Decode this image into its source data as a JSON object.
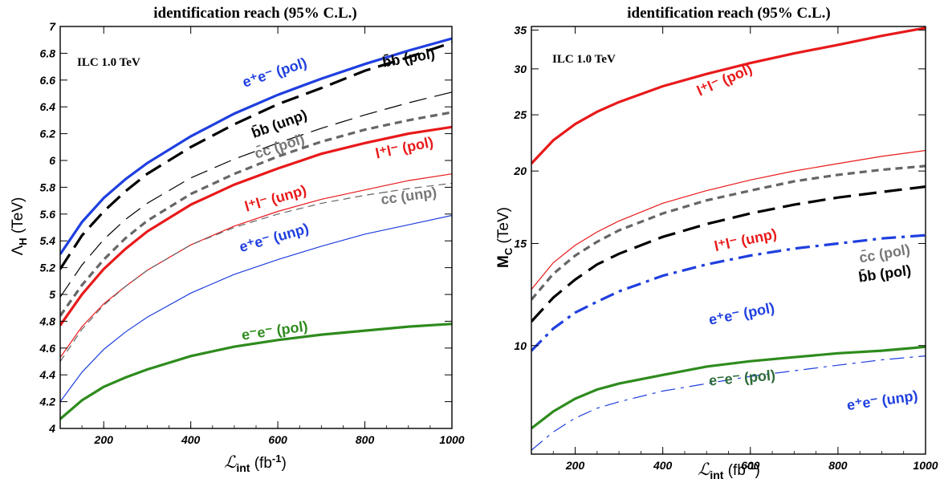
{
  "chart_data": [
    {
      "type": "line",
      "title": "identification reach (95% C.L.)",
      "annotation": "ILC 1.0 TeV",
      "xlabel_main": "ℒ",
      "xlabel_sub": "int",
      "xlabel_unit": " (fb",
      "xlabel_sup": "-1",
      "xlabel_close": ")",
      "ylabel_main": "Λ",
      "ylabel_sub": "H",
      "ylabel_unit": " (TeV)",
      "xlim": [
        100,
        1000
      ],
      "ylim": [
        4,
        7
      ],
      "xticks": [
        200,
        400,
        600,
        800,
        1000
      ],
      "yticks": [
        4,
        4.2,
        4.4,
        4.6,
        4.8,
        5,
        5.2,
        5.4,
        5.6,
        5.8,
        6,
        6.2,
        6.4,
        6.6,
        6.8,
        7
      ],
      "x": [
        100,
        150,
        200,
        250,
        300,
        400,
        500,
        600,
        700,
        800,
        900,
        1000
      ],
      "series": [
        {
          "name": "e⁺e⁻ (pol)",
          "color": "#1f3fdf",
          "style": "solid",
          "width": 3.2,
          "values": [
            5.3,
            5.54,
            5.72,
            5.86,
            5.98,
            6.18,
            6.35,
            6.49,
            6.61,
            6.72,
            6.82,
            6.91
          ]
        },
        {
          "name": "b̄b (pol)",
          "color": "#000000",
          "style": "longdash",
          "width": 3.2,
          "values": [
            5.19,
            5.44,
            5.62,
            5.77,
            5.9,
            6.1,
            6.27,
            6.42,
            6.54,
            6.67,
            6.77,
            6.88
          ]
        },
        {
          "name": "b̄b (unp)",
          "color": "#000000",
          "style": "longdash",
          "width": 1.2,
          "values": [
            4.98,
            5.22,
            5.41,
            5.56,
            5.68,
            5.87,
            6.01,
            6.13,
            6.24,
            6.34,
            6.43,
            6.51
          ]
        },
        {
          "name": "c̄c (pol)",
          "color": "#666666",
          "style": "shortdash",
          "width": 3.2,
          "values": [
            4.84,
            5.07,
            5.26,
            5.42,
            5.55,
            5.75,
            5.9,
            6.03,
            6.14,
            6.23,
            6.3,
            6.36
          ]
        },
        {
          "name": "l⁺l⁻ (pol)",
          "color": "#e8191a",
          "style": "solid",
          "width": 3.2,
          "values": [
            4.77,
            5.0,
            5.19,
            5.34,
            5.47,
            5.67,
            5.82,
            5.94,
            6.05,
            6.13,
            6.2,
            6.25
          ]
        },
        {
          "name": "l⁺l⁻ (unp)",
          "color": "#e8191a",
          "style": "solid",
          "width": 1.2,
          "values": [
            4.53,
            4.76,
            4.93,
            5.06,
            5.18,
            5.37,
            5.51,
            5.62,
            5.71,
            5.78,
            5.85,
            5.9
          ]
        },
        {
          "name": "c̄c (unp)",
          "color": "#666666",
          "style": "shortdash",
          "width": 1.2,
          "values": [
            4.5,
            4.74,
            4.92,
            5.06,
            5.18,
            5.37,
            5.5,
            5.6,
            5.68,
            5.74,
            5.79,
            5.83
          ]
        },
        {
          "name": "e⁺e⁻ (unp)",
          "color": "#1f3fdf",
          "style": "solid",
          "width": 1.2,
          "values": [
            4.2,
            4.42,
            4.59,
            4.72,
            4.83,
            5.01,
            5.15,
            5.26,
            5.36,
            5.45,
            5.52,
            5.59
          ]
        },
        {
          "name": "e⁻e⁻ (pol)",
          "color": "#2e8b1d",
          "style": "solid",
          "width": 3.2,
          "values": [
            4.07,
            4.21,
            4.31,
            4.38,
            4.44,
            4.54,
            4.61,
            4.66,
            4.7,
            4.73,
            4.76,
            4.78
          ]
        }
      ]
    },
    {
      "type": "line",
      "title": "identification reach (95% C.L.)",
      "annotation": "ILC 1.0 TeV",
      "xlabel_main": "ℒ",
      "xlabel_sub": "int",
      "xlabel_unit": " (fb",
      "xlabel_sup": "-1",
      "xlabel_close": ")",
      "ylabel_main": "M",
      "ylabel_sub": "C",
      "ylabel_unit": " (TeV)",
      "xlim": [
        100,
        1000
      ],
      "ylim": [
        6.5,
        35.5
      ],
      "xticks": [
        200,
        400,
        600,
        800,
        1000
      ],
      "yticks": [
        10,
        15,
        20,
        25,
        30,
        35
      ],
      "x": [
        100,
        150,
        200,
        250,
        300,
        400,
        500,
        600,
        700,
        800,
        900,
        1000
      ],
      "series": [
        {
          "name": "l⁺l⁻ (pol)",
          "color": "#e8191a",
          "style": "solid",
          "width": 3.2,
          "values": [
            20.6,
            22.6,
            24.1,
            25.3,
            26.3,
            28.0,
            29.4,
            30.7,
            31.9,
            33.0,
            34.2,
            35.3
          ]
        },
        {
          "name": "l⁺l⁻ (unp)",
          "color": "#e8191a",
          "style": "solid",
          "width": 1.2,
          "values": [
            12.5,
            13.9,
            14.9,
            15.7,
            16.4,
            17.6,
            18.5,
            19.3,
            20.0,
            20.6,
            21.2,
            21.7
          ]
        },
        {
          "name": "c̄c (pol)",
          "color": "#666666",
          "style": "shortdash",
          "width": 3.2,
          "values": [
            12.0,
            13.3,
            14.3,
            15.1,
            15.8,
            16.9,
            17.8,
            18.5,
            19.2,
            19.7,
            20.1,
            20.4
          ]
        },
        {
          "name": "b̄b (pol)",
          "color": "#000000",
          "style": "longdash",
          "width": 3.2,
          "values": [
            11.0,
            12.1,
            13.0,
            13.8,
            14.4,
            15.4,
            16.2,
            16.9,
            17.5,
            18.0,
            18.4,
            18.8
          ]
        },
        {
          "name": "e⁺e⁻ (pol)",
          "color": "#1f3fdf",
          "style": "dashdot",
          "width": 3.2,
          "values": [
            9.8,
            10.7,
            11.4,
            11.9,
            12.4,
            13.2,
            13.8,
            14.3,
            14.7,
            15.0,
            15.3,
            15.5
          ]
        },
        {
          "name": "e⁻e⁻ (pol)",
          "color": "#2e8b1d",
          "style": "solid",
          "width": 3.2,
          "values": [
            7.2,
            7.7,
            8.1,
            8.4,
            8.6,
            8.9,
            9.2,
            9.4,
            9.55,
            9.7,
            9.8,
            9.95
          ]
        },
        {
          "name": "e⁺e⁻ (unp)",
          "color": "#1f3fdf",
          "style": "dashdot",
          "width": 1.2,
          "values": [
            6.6,
            7.1,
            7.5,
            7.8,
            8.0,
            8.35,
            8.6,
            8.85,
            9.05,
            9.25,
            9.45,
            9.6
          ]
        }
      ]
    }
  ],
  "curve_labels": {
    "left": [
      {
        "id": "ee_pol",
        "text": "e⁺e⁻ (pol)",
        "color": "#1f3fdf"
      },
      {
        "id": "bb_pol",
        "text": "b̄b (pol)",
        "color": "#000000"
      },
      {
        "id": "bb_unp",
        "text": "b̄b (unp)",
        "color": "#000000"
      },
      {
        "id": "cc_pol",
        "text": "c̄c (pol)",
        "color": "#777777"
      },
      {
        "id": "ll_pol",
        "text": "l⁺l⁻ (pol)",
        "color": "#e8191a"
      },
      {
        "id": "ll_unp",
        "text": "l⁺l⁻ (unp)",
        "color": "#e8191a"
      },
      {
        "id": "cc_unp",
        "text": "c̄c (unp)",
        "color": "#777777"
      },
      {
        "id": "ee_unp",
        "text": "e⁺e⁻ (unp)",
        "color": "#1f3fdf"
      },
      {
        "id": "emem_pol",
        "text": "e⁻e⁻ (pol)",
        "color": "#2e8b1d"
      }
    ],
    "right": [
      {
        "id": "ll_pol",
        "text": "l⁺l⁻ (pol)",
        "color": "#e8191a"
      },
      {
        "id": "ll_unp",
        "text": "l⁺l⁻ (unp)",
        "color": "#e8191a"
      },
      {
        "id": "cc_pol",
        "text": "c̄c (pol)",
        "color": "#777777"
      },
      {
        "id": "bb_pol",
        "text": "b̄b (pol)",
        "color": "#000000"
      },
      {
        "id": "ee_pol",
        "text": "e⁺e⁻ (pol)",
        "color": "#1f3fdf"
      },
      {
        "id": "emem_pol",
        "text": "e⁻e⁻ (pol)",
        "color": "#2e6b3a"
      },
      {
        "id": "ee_unp",
        "text": "e⁺e⁻ (unp)",
        "color": "#1f3fdf"
      }
    ]
  }
}
